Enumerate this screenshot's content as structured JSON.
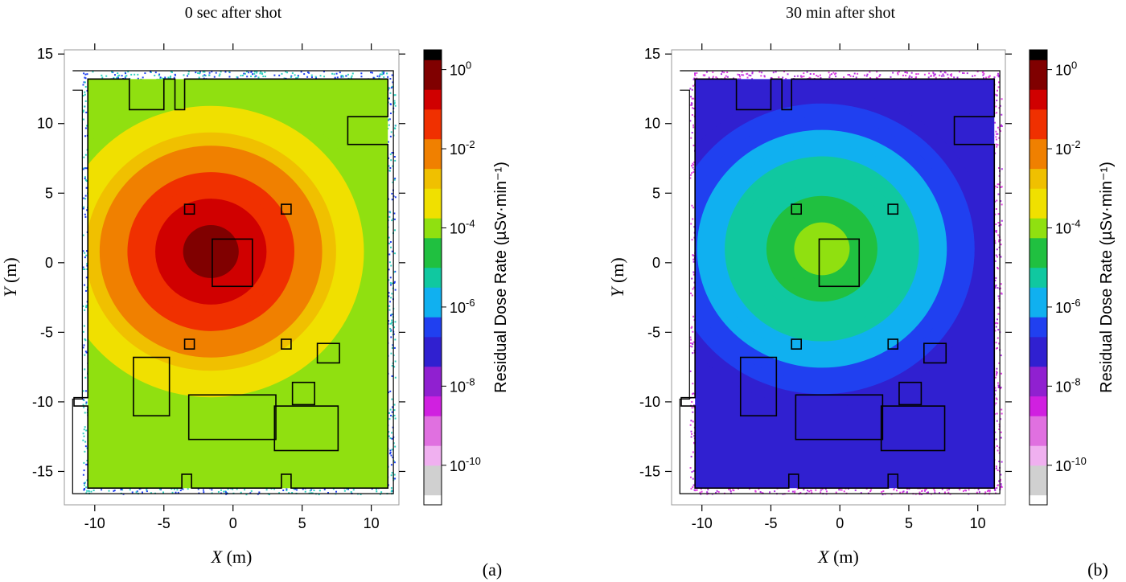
{
  "chart_data": [
    {
      "type": "heatmap",
      "panel_label": "(a)",
      "title": "0 sec after shot",
      "xlabel_var": "X",
      "xlabel_unit": " (m)",
      "ylabel_var": "Y",
      "ylabel_unit": " (m)",
      "xlim": [
        -12.2,
        12
      ],
      "ylim": [
        -17.4,
        15.3
      ],
      "x_ticks": [
        -10,
        -5,
        0,
        5,
        10
      ],
      "x_tick_labels": [
        "-10",
        "-5",
        "0",
        "5",
        "10"
      ],
      "y_ticks": [
        15,
        10,
        5,
        0,
        -5,
        -10,
        -15
      ],
      "y_tick_labels": [
        "15",
        "10",
        "5",
        "0",
        "-5",
        "-10",
        "-15"
      ],
      "source": [
        -1.6,
        0.8
      ],
      "background_level": -3.7,
      "colorbar": {
        "label": "Residual Dose Rate (µSv·min⁻¹)",
        "range_log10": [
          -11,
          0.5
        ],
        "tick_exponents": [
          0,
          -2,
          -4,
          -6,
          -8,
          -10
        ],
        "tick_base": "10"
      },
      "max_log_dose": 0.3
    },
    {
      "type": "heatmap",
      "panel_label": "(b)",
      "title": "30 min after shot",
      "xlabel_var": "X",
      "xlabel_unit": " (m)",
      "ylabel_var": "Y",
      "ylabel_unit": " (m)",
      "xlim": [
        -12.2,
        12
      ],
      "ylim": [
        -17.4,
        15.3
      ],
      "x_ticks": [
        -10,
        -5,
        0,
        5,
        10
      ],
      "x_tick_labels": [
        "-10",
        "-5",
        "0",
        "5",
        "10"
      ],
      "y_ticks": [
        15,
        10,
        5,
        0,
        -5,
        -10,
        -15
      ],
      "y_tick_labels": [
        "15",
        "10",
        "5",
        "0",
        "-5",
        "-10",
        "-15"
      ],
      "source": [
        -1.3,
        1.0
      ],
      "background_level": -7.0,
      "colorbar": {
        "label": "Residual Dose Rate (µSv·min⁻¹)",
        "range_log10": [
          -11,
          0.5
        ],
        "tick_exponents": [
          0,
          -2,
          -4,
          -6,
          -8,
          -10
        ],
        "tick_base": "10"
      },
      "max_log_dose": -3.5
    }
  ],
  "colors": {
    "colorbar_stops": [
      "#ffffff",
      "#d0d0d0",
      "#f0b0f0",
      "#e070e0",
      "#d020e0",
      "#9020d0",
      "#3020d0",
      "#2040f0",
      "#10b0f0",
      "#10c8a0",
      "#20c040",
      "#90e010",
      "#f0e000",
      "#f0c000",
      "#f08000",
      "#f03000",
      "#d00000",
      "#800000",
      "#000000"
    ]
  }
}
